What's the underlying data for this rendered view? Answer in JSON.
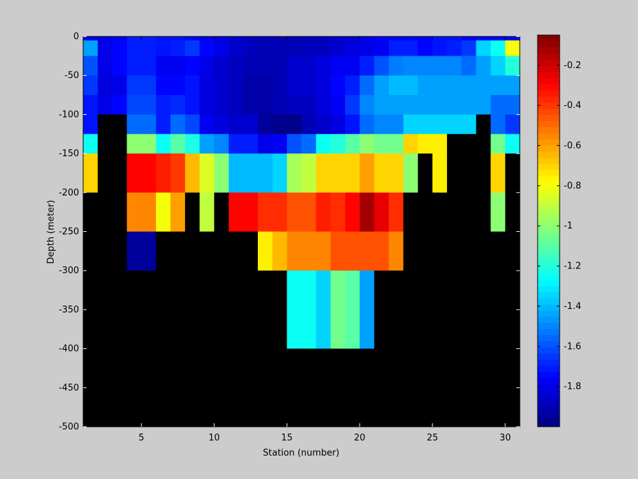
{
  "chart_data": {
    "type": "heatmap",
    "xlabel": "Station (number)",
    "ylabel": "Depth (meter)",
    "xlim": [
      1,
      31
    ],
    "ylim": [
      -500,
      0
    ],
    "x_ticks": [
      5,
      10,
      15,
      20,
      25,
      30
    ],
    "y_ticks": [
      0,
      -50,
      -100,
      -150,
      -200,
      -250,
      -300,
      -350,
      -400,
      -450,
      -500
    ],
    "x": [
      1,
      2,
      3,
      4,
      5,
      6,
      7,
      8,
      9,
      10,
      11,
      12,
      13,
      14,
      15,
      16,
      17,
      18,
      19,
      20,
      21,
      22,
      23,
      24,
      25,
      26,
      27,
      28,
      29,
      30
    ],
    "depth_bins": [
      [
        -5,
        0
      ],
      [
        -25,
        -5
      ],
      [
        -50,
        -25
      ],
      [
        -75,
        -50
      ],
      [
        -100,
        -75
      ],
      [
        -125,
        -100
      ],
      [
        -150,
        -125
      ],
      [
        -200,
        -150
      ],
      [
        -250,
        -200
      ],
      [
        -300,
        -250
      ],
      [
        -400,
        -300
      ],
      [
        -500,
        -400
      ]
    ],
    "no_data_color": "#000000",
    "colorbar": {
      "min": -2.0,
      "max": -0.05,
      "ticks": [
        -0.2,
        -0.4,
        -0.6,
        -0.8,
        -1,
        -1.2,
        -1.4,
        -1.6,
        -1.8
      ],
      "tick_labels": [
        "-0.2",
        "-0.4",
        "-0.6",
        "-0.8",
        "-1",
        "-1.2",
        "-1.4",
        "-1.6",
        "-1.8"
      ],
      "colormap": "jet"
    },
    "values": [
      [
        -1.8,
        -1.8,
        -1.78,
        -1.7,
        -1.7,
        -1.72,
        -1.72,
        -1.75,
        -1.8,
        -1.82,
        -1.85,
        -1.88,
        -1.9,
        -1.9,
        -1.9,
        -1.9,
        -1.88,
        -1.85,
        -1.85,
        -1.8,
        -1.75,
        -1.75,
        -1.75,
        -1.75,
        -1.72,
        -1.72,
        -1.75,
        -1.75,
        -1.75,
        -1.75
      ],
      [
        -1.45,
        -1.8,
        -1.75,
        -1.7,
        -1.7,
        -1.72,
        -1.7,
        -1.65,
        -1.75,
        -1.8,
        -1.85,
        -1.88,
        -1.9,
        -1.9,
        -1.9,
        -1.88,
        -1.88,
        -1.85,
        -1.82,
        -1.8,
        -1.78,
        -1.7,
        -1.7,
        -1.75,
        -1.72,
        -1.7,
        -1.65,
        -1.35,
        -1.25,
        -0.8
      ],
      [
        -1.6,
        -1.8,
        -1.75,
        -1.7,
        -1.7,
        -1.78,
        -1.78,
        -1.75,
        -1.8,
        -1.85,
        -1.88,
        -1.9,
        -1.9,
        -1.9,
        -1.85,
        -1.85,
        -1.82,
        -1.78,
        -1.78,
        -1.7,
        -1.6,
        -1.52,
        -1.5,
        -1.5,
        -1.5,
        -1.5,
        -1.55,
        -1.45,
        -1.35,
        -1.2
      ],
      [
        -1.65,
        -1.82,
        -1.8,
        -1.65,
        -1.65,
        -1.75,
        -1.75,
        -1.72,
        -1.82,
        -1.85,
        -1.88,
        -1.92,
        -1.92,
        -1.9,
        -1.85,
        -1.85,
        -1.82,
        -1.75,
        -1.7,
        -1.55,
        -1.45,
        -1.4,
        -1.4,
        -1.45,
        -1.45,
        -1.45,
        -1.45,
        -1.45,
        -1.45,
        -1.45
      ],
      [
        -1.72,
        -1.8,
        -1.75,
        -1.62,
        -1.62,
        -1.7,
        -1.68,
        -1.72,
        -1.82,
        -1.85,
        -1.88,
        -1.92,
        -1.92,
        -1.9,
        -1.88,
        -1.88,
        -1.82,
        -1.78,
        -1.65,
        -1.5,
        -1.45,
        -1.45,
        -1.45,
        -1.45,
        -1.45,
        -1.45,
        -1.45,
        -1.45,
        -1.55,
        -1.55
      ],
      [
        -1.72,
        null,
        null,
        -1.55,
        -1.55,
        -1.7,
        -1.55,
        -1.62,
        -1.78,
        -1.82,
        -1.85,
        -1.85,
        -1.95,
        -1.98,
        -1.98,
        -1.9,
        -1.85,
        -1.82,
        -1.72,
        -1.55,
        -1.5,
        -1.5,
        -1.35,
        -1.35,
        -1.35,
        -1.35,
        -1.35,
        null,
        -1.55,
        -1.65
      ],
      [
        -1.25,
        null,
        null,
        -1.0,
        -1.0,
        -1.25,
        -1.1,
        -1.22,
        -1.45,
        -1.5,
        -1.7,
        -1.7,
        -1.8,
        -1.78,
        -1.6,
        -1.55,
        -1.25,
        -1.2,
        -1.1,
        -1.0,
        -1.05,
        -1.05,
        -0.7,
        -0.75,
        -0.75,
        null,
        null,
        null,
        -1.05,
        -1.25
      ],
      [
        -0.7,
        null,
        null,
        -0.3,
        -0.3,
        -0.35,
        -0.4,
        -0.65,
        -0.85,
        -1.0,
        -1.4,
        -1.4,
        -1.4,
        -1.35,
        -0.95,
        -0.9,
        -0.7,
        -0.7,
        -0.7,
        -0.6,
        -0.7,
        -0.7,
        -1.0,
        null,
        -0.75,
        null,
        null,
        null,
        -0.7,
        null
      ],
      [
        null,
        null,
        null,
        -0.55,
        -0.55,
        -0.8,
        -0.6,
        null,
        -0.9,
        null,
        -0.3,
        -0.3,
        -0.38,
        -0.38,
        -0.45,
        -0.45,
        -0.35,
        -0.38,
        -0.3,
        -0.12,
        -0.25,
        -0.38,
        null,
        null,
        null,
        null,
        null,
        null,
        -1.0,
        null
      ],
      [
        null,
        null,
        null,
        -1.95,
        -1.95,
        null,
        null,
        null,
        null,
        null,
        null,
        null,
        -0.75,
        -0.65,
        -0.55,
        -0.55,
        -0.55,
        -0.45,
        -0.45,
        -0.45,
        -0.45,
        -0.55,
        null,
        null,
        null,
        null,
        null,
        null,
        null,
        null
      ],
      [
        null,
        null,
        null,
        null,
        null,
        null,
        null,
        null,
        null,
        null,
        null,
        null,
        null,
        null,
        -1.25,
        -1.25,
        -1.35,
        -1.05,
        -1.1,
        -1.45,
        null,
        null,
        null,
        null,
        null,
        null,
        null,
        null,
        null,
        null
      ],
      [
        null,
        null,
        null,
        null,
        null,
        null,
        null,
        null,
        null,
        null,
        null,
        null,
        null,
        null,
        null,
        null,
        null,
        null,
        null,
        null,
        null,
        null,
        null,
        null,
        null,
        null,
        null,
        null,
        null,
        null
      ]
    ]
  }
}
